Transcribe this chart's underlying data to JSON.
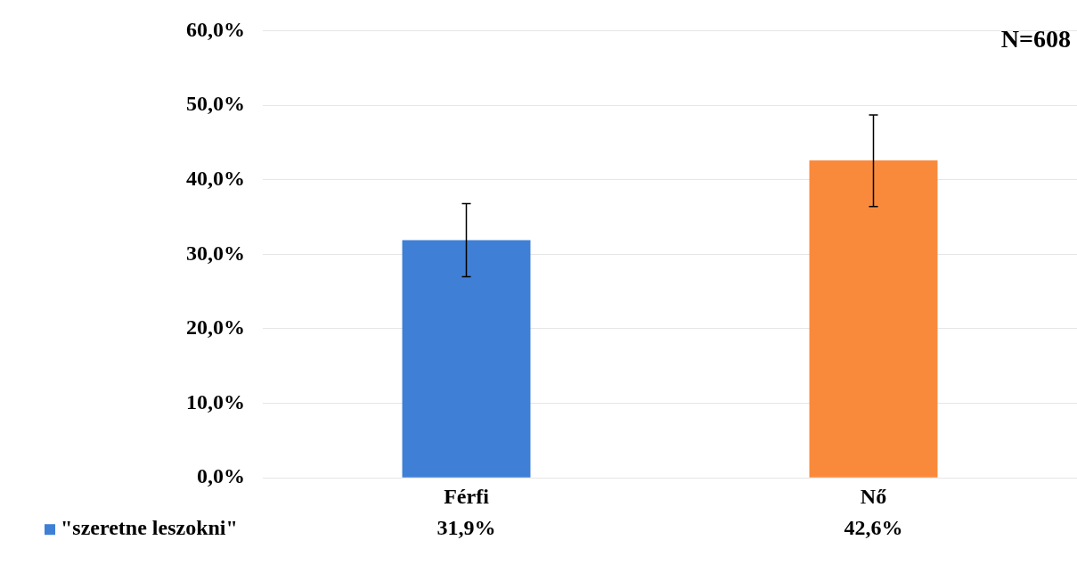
{
  "chart_data": {
    "type": "bar",
    "categories": [
      "Férfi",
      "Nő"
    ],
    "series": [
      {
        "name": "\"szeretne leszokni\"",
        "color": "#3f7fd6",
        "colors": [
          "#3f7fd6",
          "#f98a3c"
        ],
        "values": [
          31.9,
          42.6
        ],
        "errors": [
          [
            27.0,
            36.8
          ],
          [
            36.4,
            48.7
          ]
        ],
        "value_labels": [
          "31,9%",
          "42,6%"
        ]
      }
    ],
    "ylim": [
      0,
      60
    ],
    "yticks": [
      {
        "value": 0,
        "label": "0,0%"
      },
      {
        "value": 10,
        "label": "10,0%"
      },
      {
        "value": 20,
        "label": "20,0%"
      },
      {
        "value": 30,
        "label": "30,0%"
      },
      {
        "value": 40,
        "label": "40,0%"
      },
      {
        "value": 50,
        "label": "50,0%"
      },
      {
        "value": 60,
        "label": "60,0%"
      }
    ],
    "grid": "y",
    "legend": "bottom",
    "annotations": [
      "N=608"
    ]
  }
}
